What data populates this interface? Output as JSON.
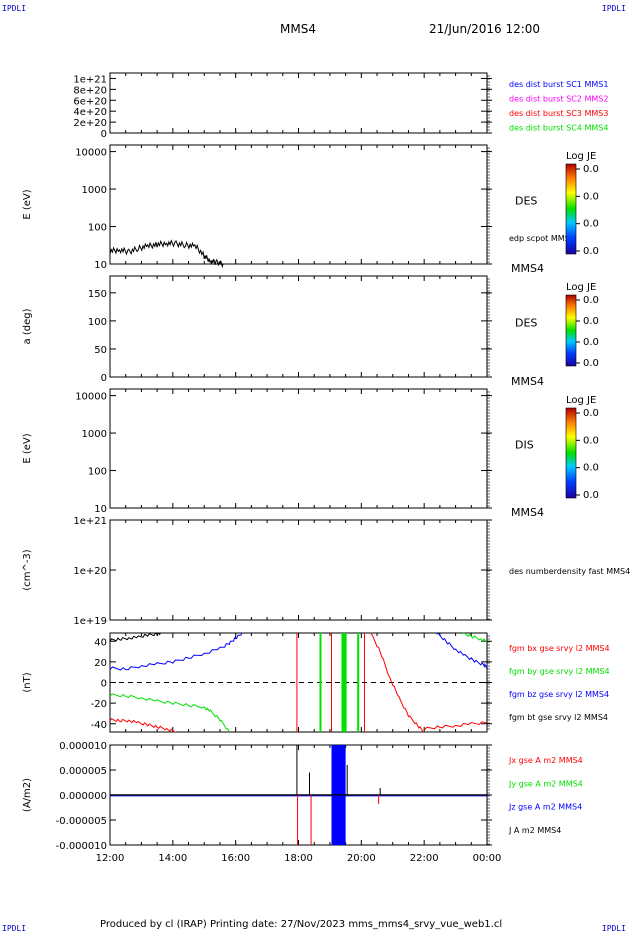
{
  "header": {
    "corner_tl": "IPDLI",
    "corner_tr": "IPDLI",
    "corner_bl": "IPDLI",
    "corner_br": "IPDLI",
    "spacecraft": "MMS4",
    "datetime": "21/Jun/2016 12:00"
  },
  "footer": {
    "text": "Produced by cl (IRAP)   Printing date: 27/Nov/2023   mms_mms4_srvy_vue_web1.cl"
  },
  "colors": {
    "blue": "#0000ff",
    "magenta": "#ff00ff",
    "red": "#ff0000",
    "green": "#00e000",
    "black": "#000000"
  },
  "chart_data": [
    {
      "type": "line",
      "ylabel": "",
      "ylim": [
        0,
        1.1e+21
      ],
      "yticks": [
        "1e+21",
        "8e+20",
        "6e+20",
        "4e+20",
        "2e+20",
        "0"
      ],
      "ytick_values": [
        1e+21,
        8e+20,
        6e+20,
        4e+20,
        2e+20,
        0
      ],
      "zero_line": "dashed",
      "legend": [
        {
          "label": "des dist burst SC1 MMS1",
          "color": "#0000ff"
        },
        {
          "label": "des dist burst SC2 MMS2",
          "color": "#ff00ff"
        },
        {
          "label": "des dist burst SC3 MMS3",
          "color": "#ff0000"
        },
        {
          "label": "des dist burst SC4 MMS4",
          "color": "#00e000"
        }
      ]
    },
    {
      "type": "heatmap",
      "ylabel": "E (eV)",
      "scale": "log",
      "ylim": [
        10,
        15000
      ],
      "yticks": [
        "10000",
        "1000",
        "100",
        "10"
      ],
      "ytick_values": [
        10000,
        1000,
        100,
        10
      ],
      "panel_label": "DES",
      "overlay_label": "edp scpot MMS4",
      "spacecraft_label": "MMS4",
      "colorbar_title": "Log JE",
      "colorbar_ticks": [
        "0.0",
        "0.0",
        "0.0",
        "0.0"
      ],
      "overlay_series": {
        "name": "edp scpot MMS4",
        "hours": [
          12.0,
          12.3,
          12.6,
          12.9,
          13.2,
          13.5,
          13.8,
          14.1,
          14.4,
          14.7,
          15.0,
          15.2,
          15.4,
          15.6
        ],
        "values": [
          22,
          24,
          21,
          26,
          30,
          33,
          36,
          35,
          32,
          30,
          16,
          12,
          11,
          10
        ]
      }
    },
    {
      "type": "heatmap",
      "ylabel": "a (deg)",
      "ylim": [
        0,
        180
      ],
      "yticks": [
        "150",
        "100",
        "50",
        "0"
      ],
      "ytick_values": [
        150,
        100,
        50,
        0
      ],
      "panel_label": "DES",
      "spacecraft_label": "MMS4",
      "colorbar_title": "Log JE",
      "colorbar_ticks": [
        "0.0",
        "0.0",
        "0.0",
        "0.0"
      ]
    },
    {
      "type": "heatmap",
      "ylabel": "E (eV)",
      "scale": "log",
      "ylim": [
        10,
        15000
      ],
      "yticks": [
        "10000",
        "1000",
        "100",
        "10"
      ],
      "ytick_values": [
        10000,
        1000,
        100,
        10
      ],
      "panel_label": "DIS",
      "spacecraft_label": "MMS4",
      "colorbar_title": "Log JE",
      "colorbar_ticks": [
        "0.0",
        "0.0",
        "0.0",
        "0.0"
      ]
    },
    {
      "type": "line",
      "ylabel": "(cm^-3)",
      "scale": "log",
      "ylim": [
        1e+19,
        1e+21
      ],
      "yticks": [
        "1e+21",
        "1e+20",
        "1e+19"
      ],
      "ytick_values": [
        1e+21,
        1e+20,
        1e+19
      ],
      "legend": [
        {
          "label": "des numberdensity fast MMS4",
          "color": "#000000"
        }
      ]
    },
    {
      "type": "line",
      "ylabel": "(nT)",
      "ylim": [
        -48,
        48
      ],
      "yticks": [
        "40",
        "20",
        "0",
        "-20",
        "-40"
      ],
      "ytick_values": [
        40,
        20,
        0,
        -20,
        -40
      ],
      "zero_line": "dashed",
      "legend": [
        {
          "label": "fgm bx gse srvy l2 MMS4",
          "color": "#ff0000"
        },
        {
          "label": "fgm by gse srvy l2 MMS4",
          "color": "#00e000"
        },
        {
          "label": "fgm bz gse srvy l2 MMS4",
          "color": "#0000ff"
        },
        {
          "label": "fgm bt gse srvy l2 MMS4",
          "color": "#000000"
        }
      ],
      "series": [
        {
          "name": "fgm bt gse srvy l2 MMS4",
          "color": "#000000",
          "hours": [
            12.0,
            12.3,
            12.6,
            12.9,
            13.2,
            13.5,
            13.6
          ],
          "values": [
            41,
            42,
            43,
            44,
            46,
            47,
            48
          ]
        },
        {
          "name": "fgm bz gse srvy l2 MMS4",
          "color": "#0000ff",
          "hours": [
            12.0,
            12.5,
            13.0,
            13.5,
            14.0,
            14.5,
            15.0,
            15.5,
            15.8,
            16.0,
            16.2
          ],
          "values": [
            14,
            13,
            16,
            18,
            20,
            24,
            28,
            33,
            38,
            43,
            48
          ]
        },
        {
          "name": "fgm bz gse srvy l2 MMS4",
          "color": "#0000ff",
          "hours": [
            22.4,
            22.7,
            23.0,
            23.3,
            23.6,
            23.9,
            24.0
          ],
          "values": [
            48,
            40,
            32,
            26,
            21,
            17,
            15
          ]
        },
        {
          "name": "fgm by gse srvy l2 MMS4",
          "color": "#00e000",
          "hours": [
            12.0,
            12.5,
            13.0,
            13.5,
            14.0,
            14.5,
            15.0,
            15.2,
            15.5,
            15.8
          ],
          "values": [
            -12,
            -13,
            -15,
            -18,
            -20,
            -22,
            -24,
            -28,
            -36,
            -48
          ]
        },
        {
          "name": "fgm by gse srvy l2 MMS4",
          "color": "#00e000",
          "hours": [
            23.2,
            23.5,
            23.8,
            24.0
          ],
          "values": [
            48,
            45,
            42,
            40
          ]
        },
        {
          "name": "fgm bx gse srvy l2 MMS4",
          "color": "#ff0000",
          "hours": [
            12.0,
            12.3,
            12.6,
            12.9,
            13.2,
            13.5,
            13.8,
            14.1
          ],
          "values": [
            -36,
            -37,
            -37,
            -39,
            -41,
            -43,
            -45,
            -48
          ]
        },
        {
          "name": "fgm bx gse srvy l2 MMS4",
          "color": "#ff0000",
          "hours": [
            20.3,
            20.6,
            20.9,
            21.2,
            21.5,
            21.8,
            22.0
          ],
          "values": [
            48,
            30,
            5,
            -15,
            -32,
            -42,
            -48
          ]
        },
        {
          "name": "fgm bx gse srvy l2 MMS4",
          "color": "#ff0000",
          "hours": [
            22.0,
            22.5,
            23.0,
            23.5,
            24.0
          ],
          "values": [
            -45,
            -43,
            -42,
            -40,
            -39
          ]
        }
      ],
      "vertical_spikes": [
        {
          "hour": 17.95,
          "color": "#ff0000"
        },
        {
          "hour": 18.7,
          "color": "#00e000"
        },
        {
          "hour": 19.05,
          "color": "#ff0000"
        },
        {
          "hour": 19.4,
          "color": "#00e000"
        },
        {
          "hour": 19.45,
          "color": "#00e000"
        },
        {
          "hour": 19.5,
          "color": "#00e000"
        },
        {
          "hour": 19.9,
          "color": "#00e000"
        },
        {
          "hour": 20.1,
          "color": "#ff0000"
        }
      ]
    },
    {
      "type": "line",
      "ylabel": "(A/m2)",
      "ylim": [
        -1e-05,
        1e-05
      ],
      "yticks": [
        "0.000010",
        "0.000005",
        "0.000000",
        "-0.000005",
        "-0.000010"
      ],
      "ytick_values": [
        1e-05,
        5e-06,
        0,
        -5e-06,
        -1e-05
      ],
      "legend": [
        {
          "label": "Jx gse A m2 MMS4",
          "color": "#ff0000"
        },
        {
          "label": "Jy gse A m2 MMS4",
          "color": "#00e000"
        },
        {
          "label": "Jz gse A m2 MMS4",
          "color": "#0000ff"
        },
        {
          "label": "J A m2 MMS4",
          "color": "#000000"
        }
      ],
      "baseline_value": 0,
      "spikes": [
        {
          "hour": 17.95,
          "value": 1e-05,
          "color": "#000000"
        },
        {
          "hour": 17.97,
          "value": -1e-05,
          "color": "#ff0000"
        },
        {
          "hour": 18.35,
          "value": 4.5e-06,
          "color": "#000000"
        },
        {
          "hour": 18.4,
          "value": -1e-05,
          "color": "#ff0000"
        },
        {
          "hour": 19.55,
          "value": 6e-06,
          "color": "#000000"
        },
        {
          "hour": 20.55,
          "value": -1.8e-06,
          "color": "#ff0000"
        },
        {
          "hour": 20.6,
          "value": 1.4e-06,
          "color": "#000000"
        }
      ],
      "filled_band": {
        "start_hour": 19.05,
        "end_hour": 19.5,
        "color": "#0000ff"
      }
    }
  ],
  "x_axis": {
    "range_hours": [
      12,
      24
    ],
    "ticks": [
      "12:00",
      "14:00",
      "16:00",
      "18:00",
      "20:00",
      "22:00",
      "00:00"
    ],
    "tick_hours": [
      12,
      14,
      16,
      18,
      20,
      22,
      24
    ]
  }
}
